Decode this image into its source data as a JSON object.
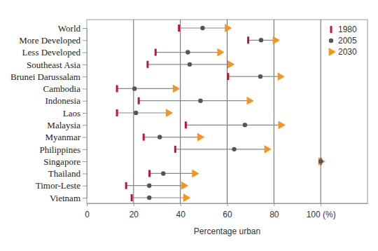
{
  "chart_data": {
    "type": "dumbbell",
    "orientation": "horizontal",
    "x_label": "Percentage urban",
    "categories": [
      "World",
      "More Developed",
      "Less Developed",
      "Southeast Asia",
      "Brunei Darussalam",
      "Cambodia",
      "Indonesia",
      "Laos",
      "Malaysia",
      "Myanmar",
      "Philippines",
      "Singapore",
      "Thailand",
      "Timor-Leste",
      "Vietnam"
    ],
    "series": [
      {
        "name": "1980",
        "color": "#c0143c",
        "marker": "line",
        "values": [
          39.4,
          69,
          29.4,
          26,
          60.4,
          12.9,
          22.2,
          12.9,
          42.3,
          24.3,
          37.8,
          100,
          26.8,
          16.8,
          19.2
        ]
      },
      {
        "name": "2005",
        "color": "#555555",
        "marker": "circle",
        "values": [
          49.5,
          74.5,
          43.2,
          44,
          74.2,
          20.4,
          48.6,
          21,
          67.6,
          31.2,
          63,
          100,
          32.7,
          26.7,
          26.7
        ]
      },
      {
        "name": "2030",
        "color": "#f7941d",
        "marker": "triangle",
        "values": [
          60,
          80.5,
          56.8,
          61.2,
          82.6,
          37.8,
          69.4,
          34.8,
          82.9,
          48.3,
          76.9,
          100,
          46,
          41.4,
          42.3
        ]
      }
    ],
    "xlim": [
      0,
      120
    ],
    "xticks": [
      0,
      20,
      40,
      60,
      80,
      {
        "value": 100,
        "label": "100 (%)"
      }
    ],
    "grid": true,
    "legend": "upper right"
  }
}
